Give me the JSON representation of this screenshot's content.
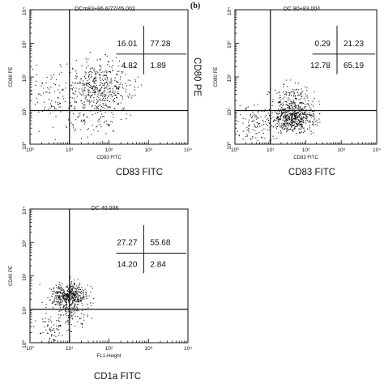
{
  "panel_letters": {
    "b": "(b)"
  },
  "chart_data": [
    {
      "type": "scatter",
      "title": "DCm83+86.6/77/45.002",
      "x_tick_labels": [
        "10⁰",
        "10¹",
        "10²",
        "10³",
        "10⁴"
      ],
      "y_tick_labels": [
        "10⁰",
        "10¹",
        "10²",
        "10³",
        "10⁴"
      ],
      "xlabel": "CD83 FITC",
      "ylabel": "CD86 PE",
      "outer_xlabel": "CD83 FITC",
      "outer_ylabel": "",
      "xlim": [
        1,
        10000
      ],
      "ylim": [
        1,
        10000
      ],
      "axis_scale": "log",
      "gates": {
        "x": 10,
        "y": 10
      },
      "quadrant_values": {
        "upper_left": "16.01",
        "upper_right": "77.28",
        "lower_left": "4.82",
        "lower_right": "1.89"
      },
      "events": {
        "approx_count": 650,
        "clusters": [
          {
            "center": [
              55,
              45
            ],
            "spread": [
              0.42,
              0.4
            ],
            "weight": 0.8
          },
          {
            "center": [
              3,
              30
            ],
            "spread": [
              0.3,
              0.45
            ],
            "weight": 0.12
          },
          {
            "center": [
              30,
              4
            ],
            "spread": [
              0.35,
              0.25
            ],
            "weight": 0.08
          }
        ]
      }
    },
    {
      "type": "scatter",
      "title": "DC 80+83.004",
      "x_tick_labels": [
        "10⁰",
        "10¹",
        "10²",
        "10³",
        "10⁴"
      ],
      "y_tick_labels": [
        "10⁰",
        "10¹",
        "10²",
        "10³",
        "10⁴"
      ],
      "xlabel": "CD83 FITC",
      "ylabel": "CD80 PE",
      "outer_xlabel": "CD83 FITC",
      "outer_ylabel": "CD80 PE",
      "xlim": [
        1,
        10000
      ],
      "ylim": [
        1,
        10000
      ],
      "axis_scale": "log",
      "gates": {
        "x": 10,
        "y": 10
      },
      "quadrant_values": {
        "upper_left": "0.29",
        "upper_right": "21.23",
        "lower_left": "12.78",
        "lower_right": "65.19"
      },
      "events": {
        "approx_count": 800,
        "clusters": [
          {
            "center": [
              45,
              6
            ],
            "spread": [
              0.3,
              0.22
            ],
            "weight": 0.65
          },
          {
            "center": [
              4,
              4
            ],
            "spread": [
              0.25,
              0.3
            ],
            "weight": 0.15
          },
          {
            "center": [
              40,
              20
            ],
            "spread": [
              0.3,
              0.25
            ],
            "weight": 0.2
          }
        ]
      }
    },
    {
      "type": "scatter",
      "title": "DC 40.006",
      "x_tick_labels": [
        "10⁰",
        "10¹",
        "10²",
        "10³",
        "10⁴"
      ],
      "y_tick_labels": [
        "10⁰",
        "10¹",
        "10²",
        "10³",
        "10⁴"
      ],
      "xlabel": "FL1-Height",
      "ylabel": "CD40 PE",
      "outer_xlabel": "CD1a FITC",
      "outer_ylabel": "",
      "xlim": [
        1,
        10000
      ],
      "ylim": [
        1,
        10000
      ],
      "axis_scale": "log",
      "gates": {
        "x": 10,
        "y": 10
      },
      "quadrant_values": {
        "upper_left": "27.27",
        "upper_right": "55.68",
        "lower_left": "14.20",
        "lower_right": "2.84"
      },
      "events": {
        "approx_count": 650,
        "clusters": [
          {
            "center": [
              9,
              25
            ],
            "spread": [
              0.22,
              0.2
            ],
            "weight": 0.75
          },
          {
            "center": [
              4,
              3
            ],
            "spread": [
              0.3,
              0.35
            ],
            "weight": 0.17
          },
          {
            "center": [
              14,
              7
            ],
            "spread": [
              0.2,
              0.2
            ],
            "weight": 0.08
          }
        ]
      }
    }
  ]
}
